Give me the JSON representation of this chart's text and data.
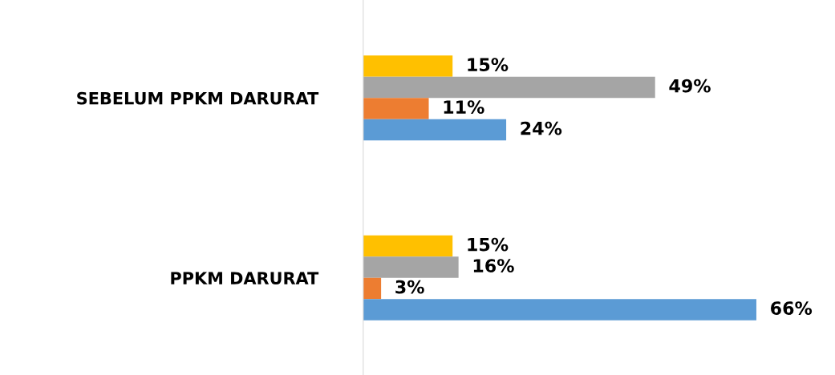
{
  "chart_data": {
    "type": "bar",
    "orientation": "horizontal",
    "categories": [
      "SEBELUM PPKM DARURAT",
      "PPKM DARURAT"
    ],
    "series": [
      {
        "color": "#ffc000",
        "values": [
          15,
          15
        ],
        "value_labels": [
          "15%",
          "15%"
        ]
      },
      {
        "color": "#a5a5a5",
        "values": [
          49,
          16
        ],
        "value_labels": [
          "49%",
          "16%"
        ]
      },
      {
        "color": "#ed7d31",
        "values": [
          11,
          3
        ],
        "value_labels": [
          "11%",
          "3%"
        ]
      },
      {
        "color": "#5b9bd5",
        "values": [
          24,
          66
        ],
        "value_labels": [
          "24%",
          "66%"
        ]
      }
    ],
    "grid": false,
    "legend": false
  }
}
